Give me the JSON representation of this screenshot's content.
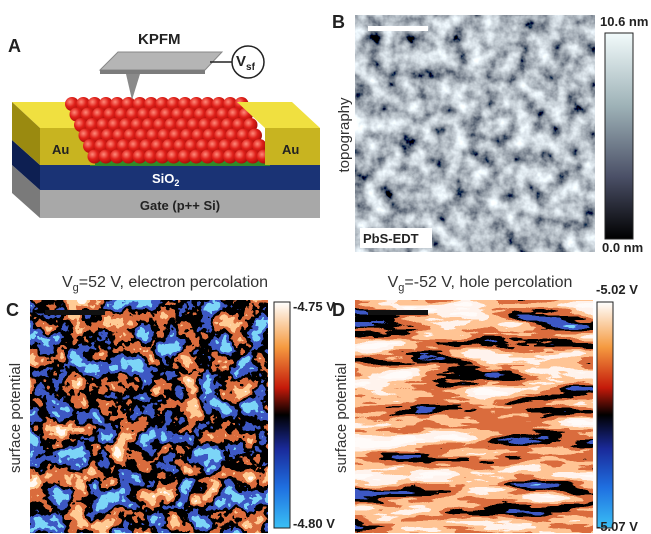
{
  "panels": {
    "A": {
      "label": "A",
      "kpfm": "KPFM",
      "vsf": {
        "main": "V",
        "sub": "sf"
      },
      "au_left": "Au",
      "au_right": "Au",
      "sio2": {
        "main": "SiO",
        "sub": "2"
      },
      "gate": "Gate (p++ Si)"
    },
    "B": {
      "label": "B",
      "axis_label": "topography",
      "sample": "PbS-EDT",
      "colorbar": {
        "max": "10.6 nm",
        "min": "0.0 nm"
      }
    },
    "C": {
      "label": "C",
      "title": {
        "main": "V",
        "sub": "g",
        "rest": "=52 V, electron percolation"
      },
      "axis_label": "surface potential",
      "colorbar": {
        "max": "-4.75 V",
        "min": "-4.80 V"
      }
    },
    "D": {
      "label": "D",
      "title": {
        "main": "V",
        "sub": "g",
        "rest": "=-52 V, hole percolation"
      },
      "axis_label": "surface potential",
      "colorbar": {
        "max": "-5.02 V",
        "min": "-5.07 V"
      }
    }
  }
}
